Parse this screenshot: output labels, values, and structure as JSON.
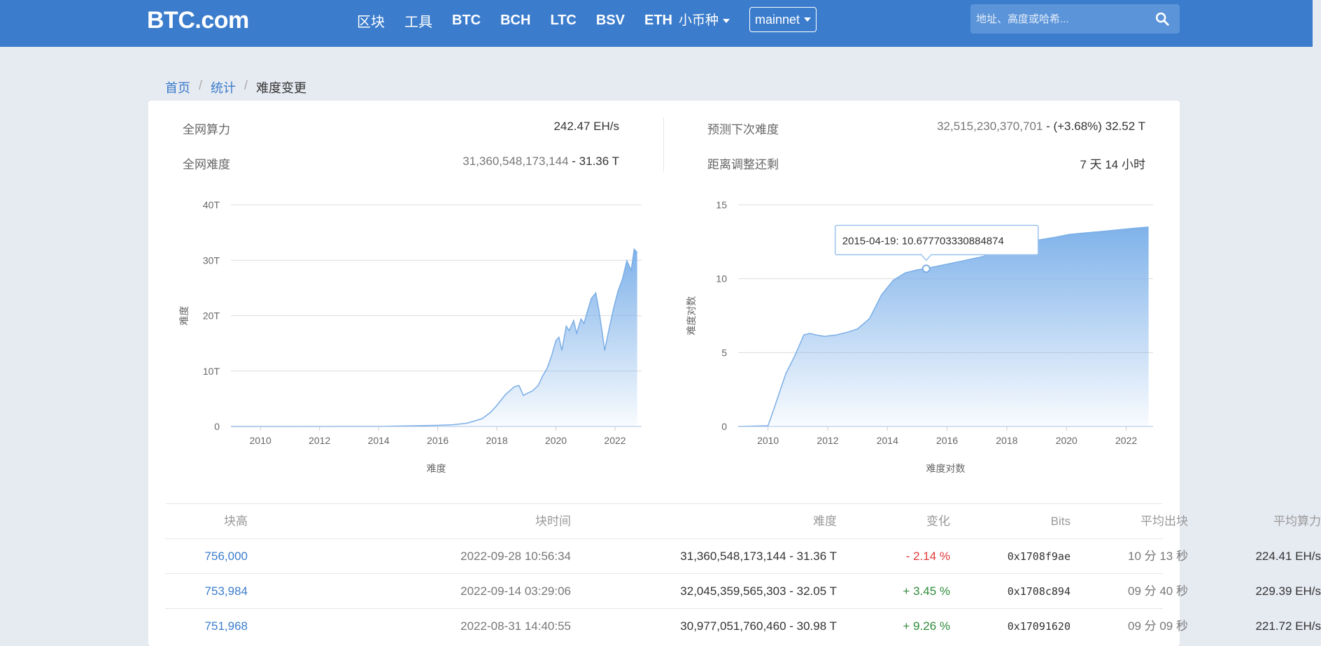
{
  "header": {
    "logo": "BTC.com",
    "nav": [
      {
        "label": "区块",
        "name": "nav-blocks"
      },
      {
        "label": "工具",
        "name": "nav-tools"
      },
      {
        "label": "BTC",
        "name": "nav-btc"
      },
      {
        "label": "BCH",
        "name": "nav-bch"
      },
      {
        "label": "LTC",
        "name": "nav-ltc"
      },
      {
        "label": "BSV",
        "name": "nav-bsv"
      },
      {
        "label": "ETH",
        "name": "nav-eth"
      }
    ],
    "altcoin_label": "小币种",
    "network_label": "mainnet",
    "search_placeholder": "地址、高度或哈希..."
  },
  "breadcrumb": {
    "home": "首页",
    "stats": "统计",
    "current": "难度变更"
  },
  "stats": {
    "hashrate_label": "全网算力",
    "hashrate_value": "242.47 EH/s",
    "difficulty_label": "全网难度",
    "difficulty_value_raw": "31,360,548,173,144",
    "difficulty_value_short": "31.36 T",
    "next_difficulty_label": "预测下次难度",
    "next_difficulty_raw": "32,515,230,370,701",
    "next_difficulty_pct": "(+3.68%)",
    "next_difficulty_short": "32.52 T",
    "time_left_label": "距离调整还剩",
    "time_left_value": "7 天 14 小时"
  },
  "chart_data": [
    {
      "type": "area",
      "ylabel": "难度",
      "xlabel": "难度",
      "y_ticks": [
        "0",
        "10T",
        "20T",
        "30T",
        "40T"
      ],
      "x_ticks": [
        "2010",
        "2012",
        "2014",
        "2016",
        "2018",
        "2020",
        "2022"
      ],
      "xlim": [
        2009.0,
        2022.9
      ],
      "ylim": [
        0,
        40
      ],
      "y_unit": "T",
      "x": [
        2009.0,
        2014.0,
        2016.0,
        2016.5,
        2017.0,
        2017.5,
        2017.8,
        2018.0,
        2018.3,
        2018.6,
        2018.75,
        2018.9,
        2019.0,
        2019.2,
        2019.4,
        2019.55,
        2019.7,
        2019.85,
        2020.0,
        2020.1,
        2020.2,
        2020.35,
        2020.45,
        2020.6,
        2020.7,
        2020.85,
        2020.95,
        2021.05,
        2021.2,
        2021.35,
        2021.45,
        2021.55,
        2021.65,
        2021.8,
        2021.95,
        2022.1,
        2022.25,
        2022.4,
        2022.55,
        2022.65,
        2022.75
      ],
      "y": [
        0,
        0.01,
        0.2,
        0.3,
        0.6,
        1.4,
        2.6,
        3.8,
        5.8,
        7.2,
        7.4,
        5.6,
        5.9,
        6.4,
        7.4,
        9.1,
        10.5,
        12.7,
        15.5,
        16.1,
        13.7,
        18.1,
        17.3,
        19.1,
        16.8,
        19.4,
        18.6,
        20.5,
        23.1,
        24.1,
        21.1,
        17.6,
        13.7,
        17.6,
        21.3,
        24.4,
        26.6,
        29.9,
        28.2,
        32.0,
        31.4
      ]
    },
    {
      "type": "area",
      "ylabel": "难度对数",
      "xlabel": "难度对数",
      "y_ticks": [
        "0",
        "5",
        "10",
        "15"
      ],
      "x_ticks": [
        "2010",
        "2012",
        "2014",
        "2016",
        "2018",
        "2020",
        "2022"
      ],
      "xlim": [
        2009.0,
        2022.9
      ],
      "ylim": [
        0,
        15
      ],
      "x": [
        2009.0,
        2010.0,
        2010.2,
        2010.4,
        2010.6,
        2010.9,
        2011.2,
        2011.4,
        2011.6,
        2011.9,
        2012.3,
        2012.7,
        2013.0,
        2013.4,
        2013.8,
        2014.2,
        2014.6,
        2015.0,
        2015.3,
        2015.8,
        2016.5,
        2017.2,
        2017.8,
        2018.5,
        2019.0,
        2019.6,
        2020.1,
        2020.6,
        2021.2,
        2021.7,
        2022.2,
        2022.75
      ],
      "y": [
        0,
        0.05,
        1.2,
        2.4,
        3.6,
        4.8,
        6.2,
        6.3,
        6.2,
        6.1,
        6.2,
        6.4,
        6.6,
        7.3,
        8.9,
        9.9,
        10.4,
        10.6,
        10.7,
        10.9,
        11.2,
        11.5,
        12.1,
        12.4,
        12.6,
        12.8,
        13.0,
        13.1,
        13.2,
        13.3,
        13.4,
        13.5
      ],
      "tooltip": "2015-04-19: 10.677703330884874",
      "tooltip_point": {
        "x": 2015.3,
        "y": 10.677703330884874
      }
    }
  ],
  "table": {
    "headers": {
      "height": "块高",
      "time": "块时间",
      "difficulty": "难度",
      "change": "变化",
      "bits": "Bits",
      "avg_block": "平均出块",
      "avg_hashrate": "平均算力"
    },
    "rows": [
      {
        "height": "756,000",
        "time": "2022-09-28 10:56:34",
        "difficulty": "31,360,548,173,144 - 31.36 T",
        "change": "- 2.14 %",
        "change_dir": "neg",
        "bits": "0x1708f9ae",
        "avg_block": "10 分 13 秒",
        "avg_hashrate": "224.41 EH/s"
      },
      {
        "height": "753,984",
        "time": "2022-09-14 03:29:06",
        "difficulty": "32,045,359,565,303 - 32.05 T",
        "change": "+ 3.45 %",
        "change_dir": "pos",
        "bits": "0x1708c894",
        "avg_block": "09 分 40 秒",
        "avg_hashrate": "229.39 EH/s"
      },
      {
        "height": "751,968",
        "time": "2022-08-31 14:40:55",
        "difficulty": "30,977,051,760,460 - 30.98 T",
        "change": "+ 9.26 %",
        "change_dir": "pos",
        "bits": "0x17091620",
        "avg_block": "09 分 09 秒",
        "avg_hashrate": "221.72 EH/s"
      }
    ]
  },
  "colors": {
    "header_bg": "#3b7ccc",
    "link": "#3b7ccc",
    "area_top": "#7fb2ea",
    "area_line": "#7aaee6",
    "negative": "#e03a3a",
    "positive": "#2e8b3a"
  }
}
